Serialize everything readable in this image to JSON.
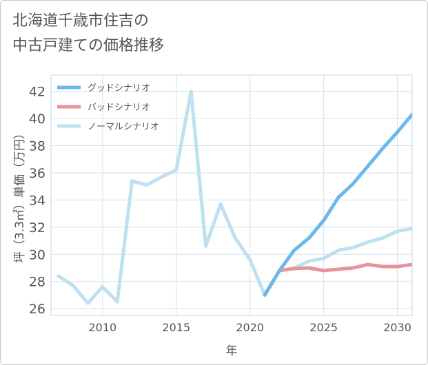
{
  "title_line1": "北海道千歳市住吉の",
  "title_line2": "中古戸建ての価格推移",
  "chart_data": {
    "type": "line",
    "title": "北海道千歳市住吉の中古戸建ての価格推移",
    "xlabel": "年",
    "ylabel": "坪（3.3㎡）単価（万円）",
    "xlim": [
      2006.5,
      2031
    ],
    "ylim": [
      25.5,
      43.2
    ],
    "xticks": [
      2010,
      2015,
      2020,
      2025,
      2030
    ],
    "xtick_labels": [
      "2010",
      "2015",
      "2020",
      "2025",
      "2030"
    ],
    "yticks": [
      26,
      28,
      30,
      32,
      34,
      36,
      38,
      40,
      42
    ],
    "ytick_labels": [
      "26",
      "28",
      "30",
      "32",
      "34",
      "36",
      "38",
      "40",
      "42"
    ],
    "grid": true,
    "legend_position": "top-left",
    "series": [
      {
        "name": "グッドシナリオ",
        "color": "#6cb8ea",
        "x": [
          2021,
          2022,
          2023,
          2024,
          2025,
          2026,
          2027,
          2028,
          2029,
          2030,
          2031
        ],
        "y": [
          27.0,
          28.8,
          30.3,
          31.2,
          32.5,
          34.2,
          35.2,
          36.5,
          37.8,
          39.0,
          40.3
        ]
      },
      {
        "name": "バッドシナリオ",
        "color": "#e6939c",
        "x": [
          2021,
          2022,
          2023,
          2024,
          2025,
          2026,
          2027,
          2028,
          2029,
          2030,
          2031
        ],
        "y": [
          27.0,
          28.8,
          28.95,
          29.0,
          28.8,
          28.9,
          29.0,
          29.25,
          29.1,
          29.1,
          29.25
        ]
      },
      {
        "name": "ノーマルシナリオ",
        "color": "#bfe0ef",
        "x": [
          2007,
          2008,
          2009,
          2010,
          2011,
          2012,
          2013,
          2014,
          2015,
          2016,
          2017,
          2018,
          2019,
          2020,
          2021,
          2022,
          2023,
          2024,
          2025,
          2026,
          2027,
          2028,
          2029,
          2030,
          2031
        ],
        "y": [
          28.4,
          27.7,
          26.4,
          27.6,
          26.5,
          35.4,
          35.1,
          35.7,
          36.2,
          42.0,
          30.6,
          33.7,
          31.2,
          29.6,
          27.0,
          28.8,
          29.0,
          29.5,
          29.7,
          30.3,
          30.5,
          30.9,
          31.2,
          31.7,
          31.9
        ]
      }
    ]
  }
}
